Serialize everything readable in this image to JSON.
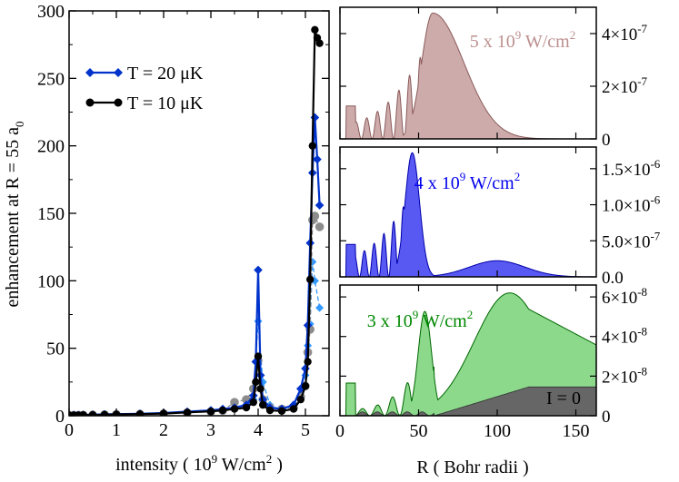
{
  "chart_data": [
    {
      "type": "line",
      "id": "left",
      "xlabel": "intensity ( 10",
      "xlabel_sup": "9",
      "xlabel_unit": " W/cm",
      "xlabel_sup2": "2",
      "xlabel_end": " )",
      "ylabel": "enhancement  at  R = 55 a",
      "ylabel_sub": "0",
      "xlim": [
        0,
        5.5
      ],
      "ylim": [
        0,
        300
      ],
      "xticks": [
        0,
        1,
        2,
        3,
        4,
        5
      ],
      "yticks": [
        0,
        50,
        100,
        150,
        200,
        250,
        300
      ],
      "legend": [
        {
          "label": "T = 20 μK",
          "color": "#0033cc",
          "marker": "diamond"
        },
        {
          "label": "T = 10 μK",
          "color": "#000000",
          "marker": "circle"
        }
      ],
      "series": [
        {
          "name": "T = 20 μK",
          "color": "#0033cc",
          "marker": "diamond",
          "dashed": false,
          "x": [
            0,
            0.1,
            0.2,
            0.3,
            0.5,
            0.75,
            1.0,
            1.5,
            2.0,
            2.5,
            3.0,
            3.25,
            3.5,
            3.75,
            3.9,
            3.95,
            4.0,
            4.05,
            4.1,
            4.25,
            4.5,
            4.75,
            4.9,
            5.0,
            5.05,
            5.1,
            5.15,
            5.2,
            5.25,
            5.3
          ],
          "y": [
            0.5,
            0.5,
            0.5,
            0.6,
            0.8,
            1,
            1.2,
            1.5,
            2,
            3,
            4,
            5,
            6,
            8,
            15,
            40,
            108,
            30,
            12,
            6,
            5,
            8,
            20,
            35,
            67,
            128,
            180,
            221,
            190,
            156
          ]
        },
        {
          "name": "T = 10 μK",
          "color": "#000000",
          "marker": "circle",
          "dashed": false,
          "x": [
            0,
            0.1,
            0.2,
            0.3,
            0.5,
            0.75,
            1.0,
            1.5,
            2.0,
            2.5,
            3.0,
            3.25,
            3.5,
            3.75,
            3.9,
            3.95,
            4.0,
            4.05,
            4.1,
            4.25,
            4.5,
            4.75,
            4.9,
            5.0,
            5.05,
            5.1,
            5.15,
            5.2,
            5.25,
            5.3
          ],
          "y": [
            0.4,
            0.4,
            0.4,
            0.5,
            0.6,
            0.8,
            1,
            1.2,
            1.6,
            2.5,
            3.2,
            4,
            5,
            6,
            10,
            25,
            44,
            20,
            8,
            4,
            3.5,
            5,
            12,
            22,
            40,
            101,
            200,
            286,
            280,
            276
          ]
        },
        {
          "name": "T = 20 μK (light)",
          "color": "#3399ff",
          "marker": "diamond",
          "dashed": true,
          "x": [
            0,
            0.1,
            0.2,
            0.3,
            0.5,
            0.75,
            1.0,
            1.5,
            2.0,
            2.5,
            3.0,
            3.5,
            3.75,
            3.9,
            4.0,
            4.1,
            4.25,
            4.5,
            4.75,
            4.9,
            5.0,
            5.05,
            5.1,
            5.15,
            5.2,
            5.3
          ],
          "y": [
            0.5,
            0.5,
            0.5,
            0.5,
            0.7,
            0.9,
            1,
            1.3,
            1.8,
            2.8,
            3.5,
            5,
            7,
            12,
            70,
            25,
            8,
            4,
            6,
            15,
            30,
            52,
            68,
            114,
            100,
            80
          ]
        },
        {
          "name": "T = 10 μK (light)",
          "color": "#8c8c8c",
          "marker": "circle",
          "dashed": true,
          "x": [
            0,
            0.1,
            0.2,
            0.3,
            0.5,
            0.75,
            1.0,
            1.5,
            2.0,
            2.5,
            3.0,
            3.25,
            3.5,
            3.75,
            3.9,
            4.0,
            4.1,
            4.25,
            4.5,
            4.75,
            4.9,
            5.0,
            5.05,
            5.1,
            5.15,
            5.2,
            5.3
          ],
          "y": [
            0.4,
            0.4,
            0.4,
            0.5,
            0.6,
            0.8,
            1,
            1.2,
            1.5,
            2.2,
            3,
            3.8,
            10,
            12,
            20,
            41,
            12,
            6,
            5,
            6,
            14,
            22,
            47,
            64,
            145,
            148,
            140
          ]
        }
      ]
    },
    {
      "type": "area",
      "id": "right",
      "xlabel": "R ( Bohr radii )",
      "xlim": [
        0,
        163
      ],
      "xticks": [
        0,
        50,
        100,
        150
      ],
      "panels": [
        {
          "label_pre": "5 x 10",
          "label_sup": "9",
          "label_mid": " W/cm",
          "label_sup2": "2",
          "label_color": "#bc8f8f",
          "fill": "#bc8f8f",
          "stroke": "#8b5a5a",
          "ymax": 5e-07,
          "yticks": [
            {
              "v": 0,
              "label": "0"
            },
            {
              "v": 2e-07,
              "label": "2×10",
              "exp": "-7"
            },
            {
              "v": 4e-07,
              "label": "4×10",
              "exp": "-7"
            }
          ],
          "peak_R": 59,
          "peak_value": 4.78e-07,
          "osc_decay": 8
        },
        {
          "label_pre": "4 x 10",
          "label_sup": "9",
          "label_mid": " W/cm",
          "label_sup2": "2",
          "label_color": "#0000ee",
          "fill": "#2020ee",
          "stroke": "#0000aa",
          "ymax": 1.8e-06,
          "yticks": [
            {
              "v": 0,
              "label": "0.0"
            },
            {
              "v": 5e-07,
              "label": "5.0×10",
              "exp": "-7"
            },
            {
              "v": 1e-06,
              "label": "1.0×10",
              "exp": "-6"
            },
            {
              "v": 1.5e-06,
              "label": "1.5×10",
              "exp": "-6"
            }
          ],
          "peak_R": 46,
          "peak_value": 1.72e-06,
          "osc_decay": 6
        },
        {
          "label_pre": "3 x 10",
          "label_sup": "9",
          "label_mid": " W/cm",
          "label_sup2": "2",
          "label_color": "#008800",
          "fill": "#66cc66",
          "stroke": "#006600",
          "ymax": 6.6e-08,
          "yticks": [
            {
              "v": 0,
              "label": "0"
            },
            {
              "v": 2e-08,
              "label": "2×10",
              "exp": "-8"
            },
            {
              "v": 4e-08,
              "label": "4×10",
              "exp": "-8"
            },
            {
              "v": 6e-08,
              "label": "6×10",
              "exp": "-8"
            }
          ],
          "peak_R": 108,
          "peak_value": 6.2e-08,
          "osc_decay": 10,
          "zero_label": "I = 0",
          "zero_fill": "#666666"
        }
      ]
    }
  ]
}
